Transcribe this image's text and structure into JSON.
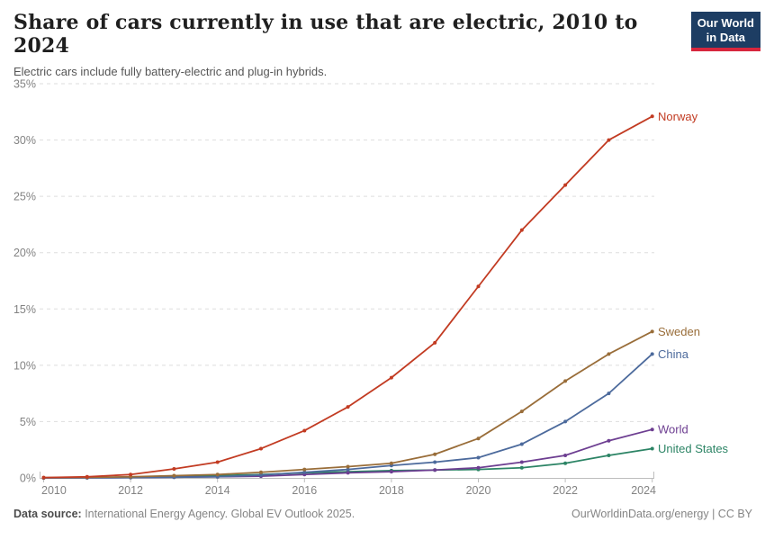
{
  "logo": {
    "line1": "Our World",
    "line2": "in Data",
    "bg_color": "#1d3d63",
    "accent_color": "#d7263d"
  },
  "chart_data": {
    "type": "line",
    "title": "Share of cars currently in use that are electric, 2010 to 2024",
    "subtitle": "Electric cars include fully battery-electric and plug-in hybrids.",
    "x": [
      2010,
      2011,
      2012,
      2013,
      2014,
      2015,
      2016,
      2017,
      2018,
      2019,
      2020,
      2021,
      2022,
      2023,
      2024
    ],
    "series": [
      {
        "name": "Norway",
        "color": "#c23b22",
        "values": [
          0.03,
          0.1,
          0.3,
          0.8,
          1.4,
          2.6,
          4.2,
          6.3,
          8.9,
          12.0,
          17.0,
          22.0,
          26.0,
          30.0,
          32.1
        ]
      },
      {
        "name": "Sweden",
        "color": "#996d39",
        "values": [
          0.02,
          0.05,
          0.1,
          0.2,
          0.3,
          0.5,
          0.75,
          1.0,
          1.3,
          2.1,
          3.5,
          5.9,
          8.6,
          11.0,
          13.0
        ]
      },
      {
        "name": "China",
        "color": "#4c6a9c",
        "values": [
          0.0,
          0.01,
          0.03,
          0.06,
          0.1,
          0.25,
          0.5,
          0.75,
          1.1,
          1.4,
          1.8,
          3.0,
          5.0,
          7.5,
          11.0
        ]
      },
      {
        "name": "World",
        "color": "#6d3e91",
        "values": [
          0.0,
          0.01,
          0.03,
          0.06,
          0.1,
          0.15,
          0.3,
          0.45,
          0.55,
          0.7,
          0.9,
          1.4,
          2.0,
          3.3,
          4.3
        ]
      },
      {
        "name": "United States",
        "color": "#2c8465",
        "values": [
          0.0,
          0.03,
          0.06,
          0.12,
          0.2,
          0.3,
          0.45,
          0.55,
          0.65,
          0.7,
          0.75,
          0.9,
          1.3,
          2.0,
          2.6
        ]
      }
    ],
    "ylim": [
      0,
      35
    ],
    "yticks": [
      {
        "value": 0,
        "label": "0%"
      },
      {
        "value": 5,
        "label": "5%"
      },
      {
        "value": 10,
        "label": "10%"
      },
      {
        "value": 15,
        "label": "15%"
      },
      {
        "value": 20,
        "label": "20%"
      },
      {
        "value": 25,
        "label": "25%"
      },
      {
        "value": 30,
        "label": "30%"
      },
      {
        "value": 35,
        "label": "35%"
      }
    ],
    "xticks": [
      {
        "value": 2010,
        "label": "2010"
      },
      {
        "value": 2012,
        "label": "2012"
      },
      {
        "value": 2014,
        "label": "2014"
      },
      {
        "value": 2016,
        "label": "2016"
      },
      {
        "value": 2018,
        "label": "2018"
      },
      {
        "value": 2020,
        "label": "2020"
      },
      {
        "value": 2022,
        "label": "2022"
      },
      {
        "value": 2024,
        "label": "2024"
      }
    ],
    "grid": "horizontal-dashed",
    "legend_position": "right-end-labels"
  },
  "footer": {
    "source_label": "Data source:",
    "source_text": " International Energy Agency. Global EV Outlook 2025.",
    "right_text": "OurWorldinData.org/energy | CC BY"
  }
}
